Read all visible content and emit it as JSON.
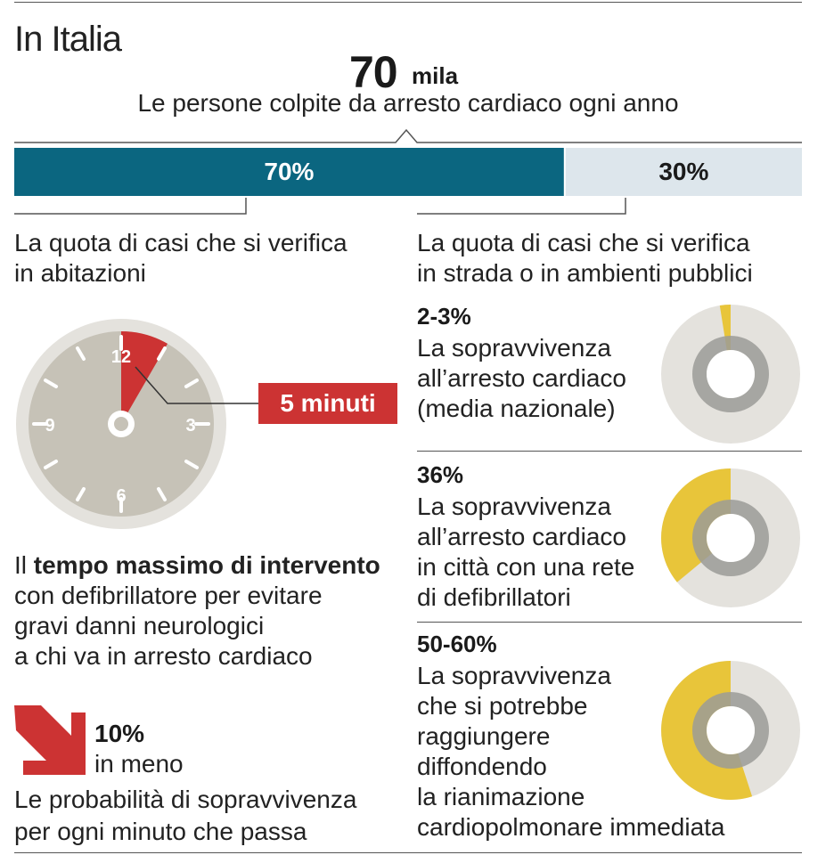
{
  "header": {
    "title": "In Italia",
    "headline_value": "70",
    "headline_unit": "mila",
    "headline_desc": "Le persone colpite da arresto cardiaco ogni anno"
  },
  "chart_data": [
    {
      "type": "bar",
      "orientation": "horizontal-stacked",
      "categories": [
        "in abitazioni",
        "in strada o in ambienti pubblici"
      ],
      "values": [
        70,
        30
      ],
      "labels": [
        "70%",
        "30%"
      ],
      "colors": [
        "#0b6680",
        "#dde6ec"
      ],
      "descriptions": [
        "La quota di casi che si verifica in abitazioni",
        "La quota di casi che si verifica in strada o in ambienti pubblici"
      ]
    },
    {
      "type": "pie",
      "items": [
        {
          "label": "2-3%",
          "value_range": [
            2,
            3
          ],
          "desc_lines": [
            "La sopravvivenza",
            "all’arresto cardiaco",
            "(media nazionale)"
          ]
        },
        {
          "label": "36%",
          "value_range": [
            36,
            36
          ],
          "desc_lines": [
            "La sopravvivenza",
            "all’arresto cardiaco",
            "in città con una rete",
            "di defibrillatori"
          ]
        },
        {
          "label": "50-60%",
          "value_range": [
            50,
            60
          ],
          "desc_lines": [
            "La sopravvivenza",
            "che si potrebbe",
            "raggiungere",
            "diffondendo",
            "la rianimazione",
            "cardiopolmonare immediata"
          ]
        }
      ],
      "colors": {
        "highlight": "#e8c53a",
        "base": "#e4e2dd",
        "ring": "#9b9b98"
      }
    }
  ],
  "left_home": {
    "line1": "La quota di casi che si verifica",
    "line2": "in abitazioni"
  },
  "right_public": {
    "line1": "La quota di casi che si verifica",
    "line2": "in strada o in ambienti pubblici"
  },
  "clock": {
    "marks": [
      "12",
      "3",
      "6",
      "9"
    ],
    "timer_label": "5 minuti",
    "timer_minutes": 5,
    "colors": {
      "face": "#c6c2b7",
      "rim": "#e4e2dd",
      "sector": "#cc3333"
    }
  },
  "time_text": {
    "lead": "Il ",
    "bold": "tempo massimo di intervento",
    "line2": "con defibrillatore per evitare",
    "line3": "gravi danni neurologici",
    "line4": "a chi va in arresto cardiaco"
  },
  "decline": {
    "pct": "10%",
    "desc": "in meno",
    "line1": "Le probabilità di sopravvivenza",
    "line2": "per ogni minuto che passa"
  }
}
